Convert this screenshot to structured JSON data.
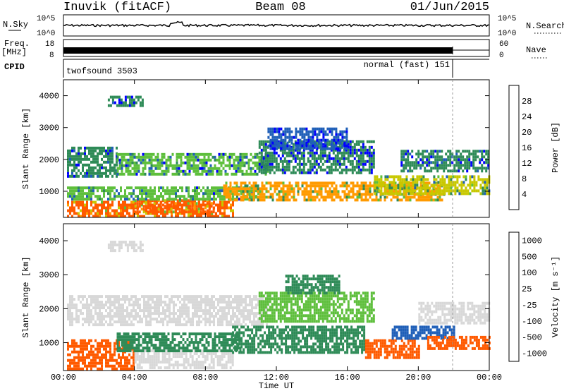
{
  "header": {
    "station": "Inuvik (fitACF)",
    "beam": "Beam 08",
    "date": "01/Jun/2015"
  },
  "strip_panels": {
    "nsky": {
      "left_label": "N.Sky",
      "left_ticks": [
        "10^5",
        "10^0"
      ],
      "right_ticks": [
        "10^5",
        "10^0"
      ],
      "right_label": "N.Search"
    },
    "freq": {
      "left_label_1": "Freq.",
      "left_label_2": "[MHz]",
      "left_ticks": [
        "18",
        "8"
      ],
      "right_ticks": [
        "60",
        "0"
      ],
      "right_label": "Nave"
    },
    "cpid": {
      "label": "CPID",
      "mode_1": "twofsound 3503",
      "mode_2": "normal (fast) 151"
    }
  },
  "x_axis": {
    "label": "Time UT",
    "ticks": [
      "00:00",
      "04:00",
      "08:00",
      "12:00",
      "16:00",
      "20:00",
      "00:00"
    ]
  },
  "colors": {
    "power_scale": [
      "#0000ff",
      "#1f5fb8",
      "#2e8b57",
      "#5ebf3c",
      "#c8c800",
      "#ff9a00",
      "#ff5a00",
      "#ff0000"
    ],
    "velocity_scale": [
      "#ff0000",
      "#ff5a00",
      "#ff9a00",
      "#d8d8d8",
      "#c8c8c8",
      "#5ebf3c",
      "#2e8b57",
      "#1f5fb8"
    ],
    "ground_scatter": "#c0c0c0"
  },
  "chart_data": [
    {
      "type": "heatmap",
      "name": "power",
      "ylabel": "Slant Range [km]",
      "yticks": [
        1000,
        2000,
        3000,
        4000
      ],
      "ylim": [
        180,
        4500
      ],
      "xlim_hours": [
        0,
        24
      ],
      "colorbar": {
        "label": "Power [dB]",
        "ticks": [
          "4",
          "8",
          "12",
          "16",
          "20",
          "24",
          "28"
        ]
      },
      "regions": [
        {
          "t0": 0.2,
          "t1": 9.5,
          "r0": 200,
          "r1": 700,
          "v": 27
        },
        {
          "t0": 4.0,
          "t1": 8.5,
          "r0": 350,
          "r1": 750,
          "v": 26
        },
        {
          "t0": 0.2,
          "t1": 11.0,
          "r0": 750,
          "r1": 1150,
          "v": 15
        },
        {
          "t0": 9.0,
          "t1": 21.5,
          "r0": 700,
          "r1": 1300,
          "v": 20
        },
        {
          "t0": 17.5,
          "t1": 24.0,
          "r0": 900,
          "r1": 1500,
          "v": 18
        },
        {
          "t0": 0.2,
          "t1": 3.0,
          "r0": 1500,
          "r1": 2400,
          "v": 11
        },
        {
          "t0": 3.0,
          "t1": 11.5,
          "r0": 1500,
          "r1": 2200,
          "v": 14
        },
        {
          "t0": 11.0,
          "t1": 17.5,
          "r0": 1600,
          "r1": 2600,
          "v": 8
        },
        {
          "t0": 11.5,
          "t1": 16.0,
          "r0": 2300,
          "r1": 3000,
          "v": 6
        },
        {
          "t0": 19.0,
          "t1": 24.0,
          "r0": 1600,
          "r1": 2300,
          "v": 11
        },
        {
          "t0": 2.5,
          "t1": 4.5,
          "r0": 3700,
          "r1": 4000,
          "v": 9
        }
      ]
    },
    {
      "type": "heatmap",
      "name": "velocity",
      "ylabel": "Slant Range [km]",
      "yticks": [
        1000,
        2000,
        3000,
        4000
      ],
      "ylim": [
        180,
        4500
      ],
      "xlim_hours": [
        0,
        24
      ],
      "colorbar": {
        "label": "Velocity [m s⁻¹]",
        "ticks": [
          "1000",
          "500",
          "100",
          "25",
          "-25",
          "-100",
          "-500",
          "-1000"
        ]
      },
      "regions": [
        {
          "t0": 0.2,
          "t1": 4.0,
          "r0": 200,
          "r1": 1100,
          "v": -300
        },
        {
          "t0": 0.2,
          "t1": 11.5,
          "r0": 1500,
          "r1": 2400,
          "v": 0
        },
        {
          "t0": 2.5,
          "t1": 4.5,
          "r0": 3700,
          "r1": 4000,
          "v": 0
        },
        {
          "t0": 4.0,
          "t1": 9.5,
          "r0": 250,
          "r1": 800,
          "v": 0
        },
        {
          "t0": 3.0,
          "t1": 10.0,
          "r0": 800,
          "r1": 1300,
          "v": 150
        },
        {
          "t0": 9.5,
          "t1": 17.0,
          "r0": 700,
          "r1": 1500,
          "v": 300
        },
        {
          "t0": 11.0,
          "t1": 17.5,
          "r0": 1600,
          "r1": 2500,
          "v": 80
        },
        {
          "t0": 12.5,
          "t1": 15.5,
          "r0": 2500,
          "r1": 3000,
          "v": 200
        },
        {
          "t0": 17.0,
          "t1": 20.0,
          "r0": 600,
          "r1": 1100,
          "v": -250
        },
        {
          "t0": 18.5,
          "t1": 22.0,
          "r0": 1100,
          "r1": 1500,
          "v": 900
        },
        {
          "t0": 20.5,
          "t1": 24.0,
          "r0": 800,
          "r1": 1200,
          "v": -300
        },
        {
          "t0": 20.0,
          "t1": 24.0,
          "r0": 1600,
          "r1": 2200,
          "v": 0
        }
      ]
    }
  ]
}
